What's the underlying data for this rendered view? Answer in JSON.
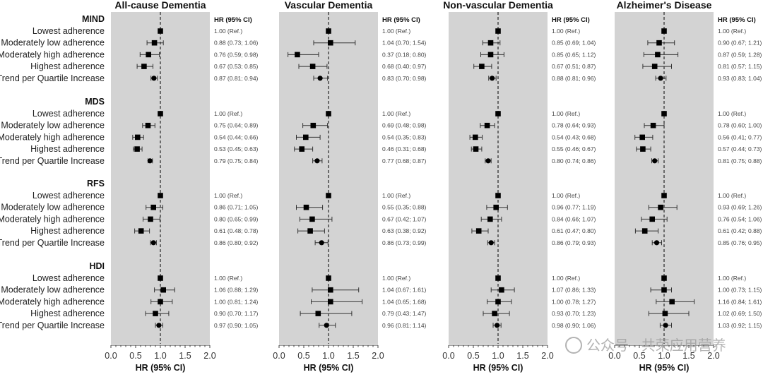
{
  "chart_data": {
    "type": "forest",
    "x_axis_label": "HR (95% CI)",
    "column_header": "HR (95% CI)",
    "xlim": [
      0.0,
      2.0
    ],
    "x_ticks": [
      "0.0",
      "0.5",
      "1.0",
      "1.5",
      "2.0"
    ],
    "reference_line": 1.0,
    "groups": [
      "MIND",
      "MDS",
      "RFS",
      "HDI"
    ],
    "row_labels": [
      "Lowest adherence",
      "Moderately low adherence",
      "Moderately high adherence",
      "Highest adherence",
      "Trend per Quartile Increase"
    ],
    "marker_note": "square for quartiles, circle for trend",
    "panels": [
      {
        "title": "All-cause Dementia",
        "groups": [
          [
            [
              1.0,
              null,
              null,
              "1.00 (Ref.)"
            ],
            [
              0.88,
              0.73,
              1.06,
              "0.88 (0.73; 1.06)"
            ],
            [
              0.76,
              0.59,
              0.98,
              "0.76 (0.59; 0.98)"
            ],
            [
              0.67,
              0.53,
              0.85,
              "0.67 (0.53; 0.85)"
            ],
            [
              0.87,
              0.81,
              0.94,
              "0.87 (0.81; 0.94)"
            ]
          ],
          [
            [
              1.0,
              null,
              null,
              "1.00 (Ref.)"
            ],
            [
              0.75,
              0.64,
              0.89,
              "0.75 (0.64; 0.89)"
            ],
            [
              0.54,
              0.44,
              0.66,
              "0.54 (0.44; 0.66)"
            ],
            [
              0.53,
              0.45,
              0.63,
              "0.53 (0.45; 0.63)"
            ],
            [
              0.79,
              0.75,
              0.84,
              "0.79 (0.75; 0.84)"
            ]
          ],
          [
            [
              1.0,
              null,
              null,
              "1.00 (Ref.)"
            ],
            [
              0.86,
              0.71,
              1.05,
              "0.86 (0.71; 1.05)"
            ],
            [
              0.8,
              0.65,
              0.99,
              "0.80 (0.65; 0.99)"
            ],
            [
              0.61,
              0.48,
              0.78,
              "0.61 (0.48; 0.78)"
            ],
            [
              0.86,
              0.8,
              0.92,
              "0.86 (0.80; 0.92)"
            ]
          ],
          [
            [
              1.0,
              null,
              null,
              "1.00 (Ref.)"
            ],
            [
              1.06,
              0.88,
              1.29,
              "1.06 (0.88; 1.29)"
            ],
            [
              1.0,
              0.81,
              1.24,
              "1.00 (0.81; 1.24)"
            ],
            [
              0.9,
              0.7,
              1.17,
              "0.90 (0.70; 1.17)"
            ],
            [
              0.97,
              0.9,
              1.05,
              "0.97 (0.90; 1.05)"
            ]
          ]
        ]
      },
      {
        "title": "Vascular Dementia",
        "groups": [
          [
            [
              1.0,
              null,
              null,
              "1.00 (Ref.)"
            ],
            [
              1.04,
              0.7,
              1.54,
              "1.04 (0.70; 1.54)"
            ],
            [
              0.37,
              0.18,
              0.8,
              "0.37 (0.18; 0.80)"
            ],
            [
              0.68,
              0.4,
              0.97,
              "0.68 (0.40; 0.97)"
            ],
            [
              0.83,
              0.7,
              0.98,
              "0.83 (0.70; 0.98)"
            ]
          ],
          [
            [
              1.0,
              null,
              null,
              "1.00 (Ref.)"
            ],
            [
              0.69,
              0.48,
              0.98,
              "0.69 (0.48; 0.98)"
            ],
            [
              0.54,
              0.35,
              0.83,
              "0.54 (0.35; 0.83)"
            ],
            [
              0.46,
              0.31,
              0.68,
              "0.46 (0.31; 0.68)"
            ],
            [
              0.77,
              0.68,
              0.87,
              "0.77 (0.68; 0.87)"
            ]
          ],
          [
            [
              1.0,
              null,
              null,
              "1.00 (Ref.)"
            ],
            [
              0.55,
              0.35,
              0.88,
              "0.55 (0.35; 0.88)"
            ],
            [
              0.67,
              0.42,
              1.07,
              "0.67 (0.42; 1.07)"
            ],
            [
              0.63,
              0.38,
              0.92,
              "0.63 (0.38; 0.92)"
            ],
            [
              0.86,
              0.73,
              0.99,
              "0.86 (0.73; 0.99)"
            ]
          ],
          [
            [
              1.0,
              null,
              null,
              "1.00 (Ref.)"
            ],
            [
              1.04,
              0.67,
              1.61,
              "1.04 (0.67; 1.61)"
            ],
            [
              1.04,
              0.65,
              1.68,
              "1.04 (0.65; 1.68)"
            ],
            [
              0.79,
              0.43,
              1.47,
              "0.79 (0.43; 1.47)"
            ],
            [
              0.96,
              0.81,
              1.14,
              "0.96 (0.81; 1.14)"
            ]
          ]
        ]
      },
      {
        "title": "Non-vascular Dementia",
        "groups": [
          [
            [
              1.0,
              null,
              null,
              "1.00 (Ref.)"
            ],
            [
              0.85,
              0.69,
              1.04,
              "0.85 (0.69; 1.04)"
            ],
            [
              0.85,
              0.65,
              1.12,
              "0.85 (0.65; 1.12)"
            ],
            [
              0.67,
              0.51,
              0.87,
              "0.67 (0.51; 0.87)"
            ],
            [
              0.88,
              0.81,
              0.96,
              "0.88 (0.81; 0.96)"
            ]
          ],
          [
            [
              1.0,
              null,
              null,
              "1.00 (Ref.)"
            ],
            [
              0.78,
              0.64,
              0.93,
              "0.78 (0.64; 0.93)"
            ],
            [
              0.54,
              0.43,
              0.68,
              "0.54 (0.43; 0.68)"
            ],
            [
              0.55,
              0.46,
              0.67,
              "0.55 (0.46; 0.67)"
            ],
            [
              0.8,
              0.74,
              0.86,
              "0.80 (0.74; 0.86)"
            ]
          ],
          [
            [
              1.0,
              null,
              null,
              "1.00 (Ref.)"
            ],
            [
              0.96,
              0.77,
              1.19,
              "0.96 (0.77; 1.19)"
            ],
            [
              0.84,
              0.66,
              1.07,
              "0.84 (0.66; 1.07)"
            ],
            [
              0.61,
              0.47,
              0.8,
              "0.61 (0.47; 0.80)"
            ],
            [
              0.86,
              0.79,
              0.93,
              "0.86 (0.79; 0.93)"
            ]
          ],
          [
            [
              1.0,
              null,
              null,
              "1.00 (Ref.)"
            ],
            [
              1.07,
              0.86,
              1.33,
              "1.07 (0.86; 1.33)"
            ],
            [
              1.0,
              0.78,
              1.27,
              "1.00 (0.78; 1.27)"
            ],
            [
              0.93,
              0.7,
              1.23,
              "0.93 (0.70; 1.23)"
            ],
            [
              0.98,
              0.9,
              1.06,
              "0.98 (0.90; 1.06)"
            ]
          ]
        ]
      },
      {
        "title": "Alzheimer's Disease",
        "groups": [
          [
            [
              1.0,
              null,
              null,
              "1.00 (Ref.)"
            ],
            [
              0.9,
              0.67,
              1.21,
              "0.90 (0.67; 1.21)"
            ],
            [
              0.87,
              0.59,
              1.28,
              "0.87 (0.59; 1.28)"
            ],
            [
              0.81,
              0.57,
              1.15,
              "0.81 (0.57; 1.15)"
            ],
            [
              0.93,
              0.83,
              1.04,
              "0.93 (0.83; 1.04)"
            ]
          ],
          [
            [
              1.0,
              null,
              null,
              "1.00 (Ref.)"
            ],
            [
              0.78,
              0.6,
              1.0,
              "0.78 (0.60; 1.00)"
            ],
            [
              0.56,
              0.41,
              0.77,
              "0.56 (0.41; 0.77)"
            ],
            [
              0.57,
              0.44,
              0.73,
              "0.57 (0.44; 0.73)"
            ],
            [
              0.81,
              0.75,
              0.88,
              "0.81 (0.75; 0.88)"
            ]
          ],
          [
            [
              1.0,
              null,
              null,
              "1.00 (Ref.)"
            ],
            [
              0.93,
              0.69,
              1.26,
              "0.93 (0.69; 1.26)"
            ],
            [
              0.76,
              0.54,
              1.06,
              "0.76 (0.54; 1.06)"
            ],
            [
              0.61,
              0.42,
              0.88,
              "0.61 (0.42; 0.88)"
            ],
            [
              0.85,
              0.76,
              0.95,
              "0.85 (0.76; 0.95)"
            ]
          ],
          [
            [
              1.0,
              null,
              null,
              "1.00 (Ref.)"
            ],
            [
              1.0,
              0.73,
              1.15,
              "1.00 (0.73; 1.15)"
            ],
            [
              1.16,
              0.84,
              1.61,
              "1.16 (0.84; 1.61)"
            ],
            [
              1.02,
              0.69,
              1.5,
              "1.02 (0.69; 1.50)"
            ],
            [
              1.03,
              0.92,
              1.15,
              "1.03 (0.92; 1.15)"
            ]
          ]
        ]
      }
    ],
    "colors": {
      "panel_bg": "#d3d3d3",
      "marker": "#000000",
      "ref_line": "#333333"
    }
  },
  "watermark": "公众号 · 共荣应用营养"
}
